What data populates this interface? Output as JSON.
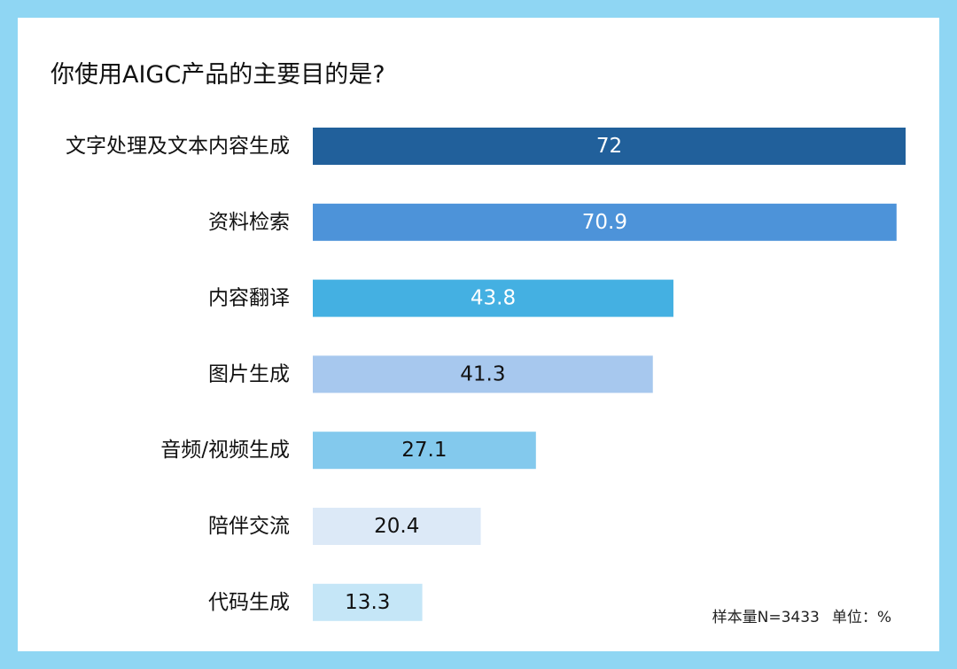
{
  "title": "你使用AIGC产品的主要目的是?",
  "note": {
    "sample": "样本量N=3433",
    "unit": "单位：%"
  },
  "chart_data": {
    "type": "bar",
    "orientation": "horizontal",
    "title": "你使用AIGC产品的主要目的是?",
    "xlabel": "",
    "ylabel": "",
    "xlim": [
      0,
      72
    ],
    "grid": false,
    "categories": [
      "文字处理及文本内容生成",
      "资料检索",
      "内容翻译",
      "图片生成",
      "音频/视频生成",
      "陪伴交流",
      "代码生成"
    ],
    "values": [
      72,
      70.9,
      43.8,
      41.3,
      27.1,
      20.4,
      13.3
    ],
    "value_labels": [
      "72",
      "70.9",
      "43.8",
      "41.3",
      "27.1",
      "20.4",
      "13.3"
    ],
    "bar_colors": [
      "#21609b",
      "#4d93d9",
      "#44b0e2",
      "#a7c8ee",
      "#83c9ed",
      "#dce9f7",
      "#c5e6f7"
    ],
    "label_colors": [
      "#ffffff",
      "#ffffff",
      "#ffffff",
      "#111111",
      "#111111",
      "#111111",
      "#111111"
    ]
  }
}
